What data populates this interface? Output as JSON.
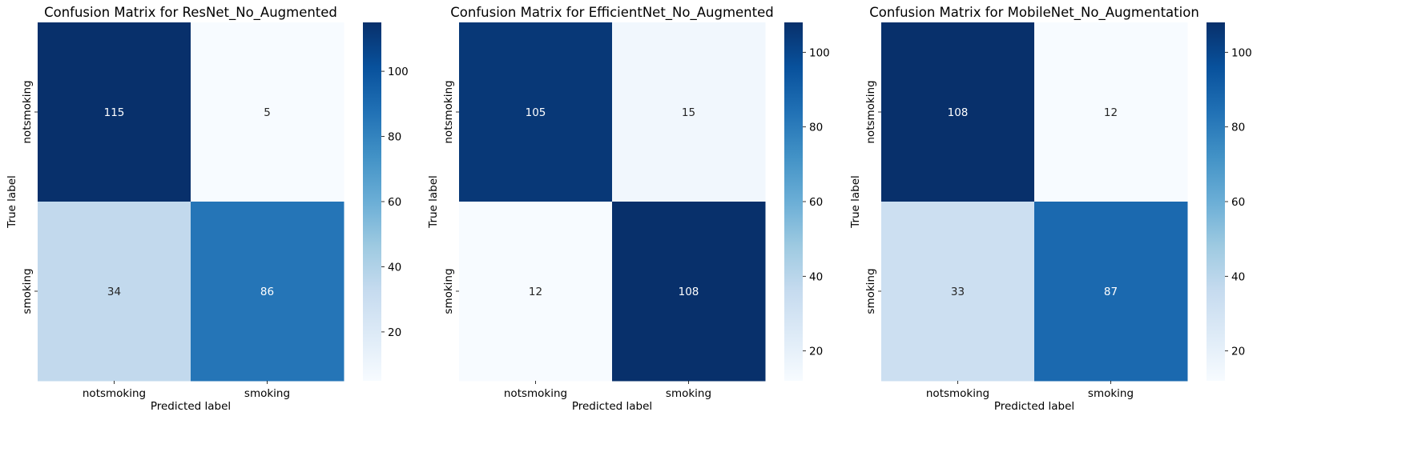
{
  "chart_data": [
    {
      "type": "heatmap",
      "title": "Confusion Matrix for ResNet_No_Augmented",
      "xlabel": "Predicted label",
      "ylabel": "True label",
      "x_categories": [
        "notsmoking",
        "smoking"
      ],
      "y_categories": [
        "notsmoking",
        "smoking"
      ],
      "values": [
        [
          115,
          5
        ],
        [
          34,
          86
        ]
      ],
      "colormap": "Blues",
      "colorbar": {
        "range": [
          5,
          115
        ],
        "ticks": [
          20,
          40,
          60,
          80,
          100
        ]
      }
    },
    {
      "type": "heatmap",
      "title": "Confusion Matrix for EfficientNet_No_Augmented",
      "xlabel": "Predicted label",
      "ylabel": "True label",
      "x_categories": [
        "notsmoking",
        "smoking"
      ],
      "y_categories": [
        "notsmoking",
        "smoking"
      ],
      "values": [
        [
          105,
          15
        ],
        [
          12,
          108
        ]
      ],
      "colormap": "Blues",
      "colorbar": {
        "range": [
          12,
          108
        ],
        "ticks": [
          20,
          40,
          60,
          80,
          100
        ]
      }
    },
    {
      "type": "heatmap",
      "title": "Confusion Matrix for MobileNet_No_Augmentation",
      "xlabel": "Predicted label",
      "ylabel": "True label",
      "x_categories": [
        "notsmoking",
        "smoking"
      ],
      "y_categories": [
        "notsmoking",
        "smoking"
      ],
      "values": [
        [
          108,
          12
        ],
        [
          33,
          87
        ]
      ],
      "colormap": "Blues",
      "colorbar": {
        "range": [
          12,
          108
        ],
        "ticks": [
          20,
          40,
          60,
          80,
          100
        ]
      }
    }
  ]
}
